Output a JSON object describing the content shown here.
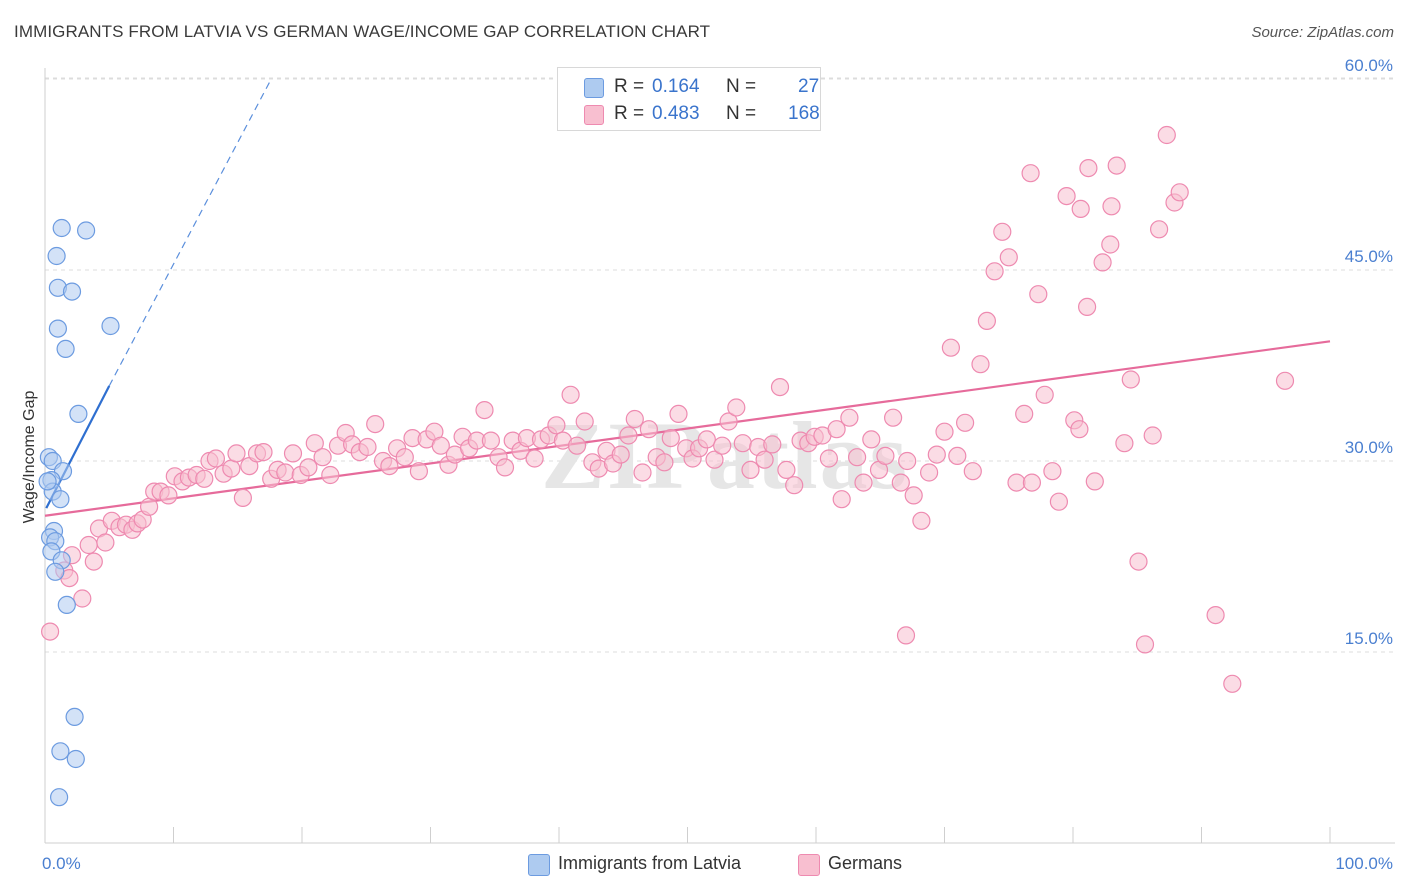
{
  "title": "IMMIGRANTS FROM LATVIA VS GERMAN WAGE/INCOME GAP CORRELATION CHART",
  "source": "Source: ZipAtlas.com",
  "watermark": "ZIPatlas",
  "legend": {
    "rows": [
      {
        "r_label": "R =",
        "r_value": "0.164",
        "n_label": "N =",
        "n_value": "27",
        "color": "#aecbf0",
        "border": "#6c9be0"
      },
      {
        "r_label": "R =",
        "r_value": "0.483",
        "n_label": "N =",
        "n_value": "168",
        "color": "#f8bfd0",
        "border": "#ee8ab0"
      }
    ]
  },
  "bottom_legend": [
    {
      "label": "Immigrants from Latvia",
      "color": "#aecbf0",
      "border": "#6c9be0"
    },
    {
      "label": "Germans",
      "color": "#f8bfd0",
      "border": "#ee8ab0"
    }
  ],
  "chart_data": {
    "type": "scatter",
    "title": "IMMIGRANTS FROM LATVIA VS GERMAN WAGE/INCOME GAP CORRELATION CHART",
    "xlabel": "",
    "ylabel": "Wage/Income Gap",
    "xlim": [
      0,
      100
    ],
    "ylim": [
      0,
      63
    ],
    "x_tick_labels": [
      "0.0%",
      "100.0%"
    ],
    "y_ticks": [
      15,
      30,
      45,
      60
    ],
    "y_tick_labels": [
      "15.0%",
      "30.0%",
      "45.0%",
      "60.0%"
    ],
    "grid": true,
    "legend_placement": "top-center",
    "series": [
      {
        "name": "Immigrants from Latvia",
        "color": "#6c9be0",
        "fill": "#aecbf0",
        "points": [
          [
            1.3,
            48.3
          ],
          [
            3.2,
            48.1
          ],
          [
            0.9,
            46.1
          ],
          [
            1.0,
            43.6
          ],
          [
            2.1,
            43.3
          ],
          [
            5.1,
            40.6
          ],
          [
            1.0,
            40.4
          ],
          [
            1.6,
            38.8
          ],
          [
            2.6,
            33.7
          ],
          [
            0.3,
            30.3
          ],
          [
            0.6,
            30.0
          ],
          [
            1.4,
            29.2
          ],
          [
            0.5,
            28.5
          ],
          [
            0.6,
            27.6
          ],
          [
            1.2,
            27.0
          ],
          [
            0.7,
            24.5
          ],
          [
            0.4,
            24.0
          ],
          [
            0.8,
            23.7
          ],
          [
            0.5,
            22.9
          ],
          [
            1.3,
            22.2
          ],
          [
            0.8,
            21.3
          ],
          [
            1.7,
            18.7
          ],
          [
            2.3,
            9.9
          ],
          [
            1.2,
            7.2
          ],
          [
            2.4,
            6.6
          ],
          [
            1.1,
            3.6
          ],
          [
            0.2,
            28.4
          ]
        ],
        "trend": {
          "x": [
            0.1,
            5.0
          ],
          "y": [
            26.3,
            35.9
          ]
        },
        "trend_extension": {
          "x": [
            5.0,
            17.5
          ],
          "y": [
            35.9,
            59.8
          ]
        }
      },
      {
        "name": "Germans",
        "color": "#ee8ab0",
        "fill": "#f8bfd0",
        "points": [
          [
            0.4,
            16.6
          ],
          [
            1.5,
            21.4
          ],
          [
            1.9,
            20.8
          ],
          [
            2.1,
            22.6
          ],
          [
            2.9,
            19.2
          ],
          [
            3.4,
            23.4
          ],
          [
            3.8,
            22.1
          ],
          [
            4.2,
            24.7
          ],
          [
            4.7,
            23.6
          ],
          [
            5.2,
            25.3
          ],
          [
            5.8,
            24.8
          ],
          [
            6.3,
            25.0
          ],
          [
            6.8,
            24.6
          ],
          [
            7.2,
            25.1
          ],
          [
            7.6,
            25.4
          ],
          [
            8.1,
            26.4
          ],
          [
            8.5,
            27.6
          ],
          [
            9.0,
            27.6
          ],
          [
            9.6,
            27.3
          ],
          [
            10.1,
            28.8
          ],
          [
            10.7,
            28.4
          ],
          [
            11.2,
            28.7
          ],
          [
            11.8,
            28.9
          ],
          [
            12.4,
            28.6
          ],
          [
            12.8,
            30.0
          ],
          [
            13.3,
            30.2
          ],
          [
            13.9,
            29.0
          ],
          [
            14.5,
            29.4
          ],
          [
            14.9,
            30.6
          ],
          [
            15.4,
            27.1
          ],
          [
            15.9,
            29.6
          ],
          [
            16.5,
            30.6
          ],
          [
            17.0,
            30.7
          ],
          [
            17.6,
            28.6
          ],
          [
            18.1,
            29.3
          ],
          [
            18.7,
            29.1
          ],
          [
            19.3,
            30.6
          ],
          [
            19.9,
            28.9
          ],
          [
            20.5,
            29.5
          ],
          [
            21.0,
            31.4
          ],
          [
            21.6,
            30.3
          ],
          [
            22.2,
            28.9
          ],
          [
            22.8,
            31.2
          ],
          [
            23.4,
            32.2
          ],
          [
            23.9,
            31.3
          ],
          [
            24.5,
            30.7
          ],
          [
            25.1,
            31.1
          ],
          [
            25.7,
            32.9
          ],
          [
            26.3,
            30.0
          ],
          [
            26.8,
            29.6
          ],
          [
            27.4,
            31.0
          ],
          [
            28.0,
            30.3
          ],
          [
            28.6,
            31.8
          ],
          [
            29.1,
            29.2
          ],
          [
            29.7,
            31.7
          ],
          [
            30.3,
            32.3
          ],
          [
            30.8,
            31.2
          ],
          [
            31.4,
            29.7
          ],
          [
            31.9,
            30.5
          ],
          [
            32.5,
            31.9
          ],
          [
            33.0,
            31.0
          ],
          [
            33.6,
            31.6
          ],
          [
            34.2,
            34.0
          ],
          [
            34.7,
            31.6
          ],
          [
            35.3,
            30.3
          ],
          [
            35.8,
            29.5
          ],
          [
            36.4,
            31.6
          ],
          [
            37.0,
            30.8
          ],
          [
            37.5,
            31.8
          ],
          [
            38.1,
            30.2
          ],
          [
            38.6,
            31.7
          ],
          [
            39.2,
            32.0
          ],
          [
            39.8,
            32.8
          ],
          [
            40.3,
            31.6
          ],
          [
            40.9,
            35.2
          ],
          [
            41.4,
            31.2
          ],
          [
            42.0,
            33.1
          ],
          [
            42.6,
            29.9
          ],
          [
            43.1,
            29.4
          ],
          [
            43.7,
            30.8
          ],
          [
            44.2,
            29.8
          ],
          [
            44.8,
            30.5
          ],
          [
            45.4,
            32.0
          ],
          [
            45.9,
            33.3
          ],
          [
            46.5,
            29.1
          ],
          [
            47.0,
            32.5
          ],
          [
            47.6,
            30.3
          ],
          [
            48.2,
            29.9
          ],
          [
            48.7,
            31.8
          ],
          [
            49.3,
            33.7
          ],
          [
            49.9,
            31.0
          ],
          [
            50.4,
            30.2
          ],
          [
            50.9,
            31.0
          ],
          [
            51.5,
            31.7
          ],
          [
            52.1,
            30.1
          ],
          [
            52.7,
            31.2
          ],
          [
            53.2,
            33.1
          ],
          [
            53.8,
            34.2
          ],
          [
            54.3,
            31.4
          ],
          [
            54.9,
            29.3
          ],
          [
            55.5,
            31.1
          ],
          [
            56.0,
            30.1
          ],
          [
            56.6,
            31.3
          ],
          [
            57.2,
            35.8
          ],
          [
            57.7,
            29.3
          ],
          [
            58.3,
            28.1
          ],
          [
            58.8,
            31.6
          ],
          [
            59.4,
            31.4
          ],
          [
            59.9,
            31.9
          ],
          [
            60.5,
            32.0
          ],
          [
            61.0,
            30.2
          ],
          [
            61.6,
            32.5
          ],
          [
            62.0,
            27.0
          ],
          [
            62.6,
            33.4
          ],
          [
            63.2,
            30.3
          ],
          [
            63.7,
            28.3
          ],
          [
            64.3,
            31.7
          ],
          [
            64.9,
            29.3
          ],
          [
            65.4,
            30.4
          ],
          [
            66.0,
            33.4
          ],
          [
            66.6,
            28.3
          ],
          [
            67.1,
            30.0
          ],
          [
            67.6,
            27.3
          ],
          [
            68.2,
            25.3
          ],
          [
            68.8,
            29.1
          ],
          [
            69.4,
            30.5
          ],
          [
            70.0,
            32.3
          ],
          [
            70.5,
            38.9
          ],
          [
            71.0,
            30.4
          ],
          [
            71.6,
            33.0
          ],
          [
            72.2,
            29.2
          ],
          [
            72.8,
            37.6
          ],
          [
            73.3,
            41.0
          ],
          [
            73.9,
            44.9
          ],
          [
            74.5,
            48.0
          ],
          [
            75.0,
            46.0
          ],
          [
            75.6,
            28.3
          ],
          [
            76.2,
            33.7
          ],
          [
            76.7,
            52.6
          ],
          [
            77.3,
            43.1
          ],
          [
            77.8,
            35.2
          ],
          [
            78.4,
            29.2
          ],
          [
            78.9,
            26.8
          ],
          [
            79.5,
            50.8
          ],
          [
            80.1,
            33.2
          ],
          [
            80.6,
            49.8
          ],
          [
            81.1,
            42.1
          ],
          [
            81.7,
            28.4
          ],
          [
            82.3,
            45.6
          ],
          [
            82.9,
            47.0
          ],
          [
            83.4,
            53.2
          ],
          [
            84.0,
            31.4
          ],
          [
            84.5,
            36.4
          ],
          [
            85.1,
            22.1
          ],
          [
            85.6,
            15.6
          ],
          [
            86.2,
            32.0
          ],
          [
            86.7,
            48.2
          ],
          [
            87.3,
            55.6
          ],
          [
            87.9,
            50.3
          ],
          [
            88.3,
            51.1
          ],
          [
            76.8,
            28.3
          ],
          [
            67.0,
            16.3
          ],
          [
            91.1,
            17.9
          ],
          [
            92.4,
            12.5
          ],
          [
            96.5,
            36.3
          ],
          [
            80.5,
            32.5
          ],
          [
            81.2,
            53.0
          ],
          [
            83.0,
            50.0
          ]
        ],
        "trend": {
          "x": [
            0,
            100
          ],
          "y": [
            25.7,
            39.4
          ]
        }
      }
    ]
  }
}
